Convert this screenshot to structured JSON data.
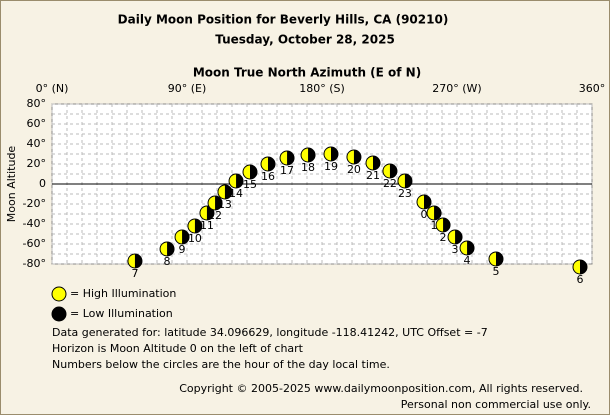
{
  "chart_data": {
    "type": "scatter",
    "title": "Daily Moon Position for Beverly Hills, CA (90210)",
    "subtitle": "Tuesday, October 28, 2025",
    "x_label": "Moon True North Azimuth (E of N)",
    "y_label": "Moon Altitude",
    "xlim": [
      0,
      360
    ],
    "xticks": [
      {
        "value": 0,
        "label": "0° (N)"
      },
      {
        "value": 90,
        "label": "90° (E)"
      },
      {
        "value": 180,
        "label": "180° (S)"
      },
      {
        "value": 270,
        "label": "270° (W)"
      },
      {
        "value": 360,
        "label": "360°"
      }
    ],
    "minor_xticks": [
      10,
      20,
      30,
      40,
      50,
      60,
      70,
      80,
      100,
      110,
      120,
      130,
      140,
      150,
      160,
      170,
      190,
      200,
      210,
      220,
      230,
      240,
      250,
      260,
      280,
      290,
      300,
      310,
      320,
      330,
      340,
      350
    ],
    "ylim": [
      -80,
      80
    ],
    "yticks": [
      {
        "value": 80,
        "label": "80°"
      },
      {
        "value": 60,
        "label": "60°"
      },
      {
        "value": 40,
        "label": "40°"
      },
      {
        "value": 20,
        "label": "20°"
      },
      {
        "value": 0,
        "label": "0"
      },
      {
        "value": -20,
        "label": "-20°"
      },
      {
        "value": -40,
        "label": "-40°"
      },
      {
        "value": -60,
        "label": "-60°"
      },
      {
        "value": -80,
        "label": "-80°"
      }
    ],
    "minor_yticks": [
      70,
      50,
      30,
      10,
      -10,
      -30,
      -50,
      -70
    ],
    "grid": true,
    "x": [
      55.3,
      76.7,
      86.7,
      95.3,
      103.3,
      108.7,
      115.3,
      122.7,
      132,
      144,
      156.7,
      170.7,
      186,
      201.3,
      214,
      225.3,
      235.3,
      248,
      254.7,
      260.7,
      268.7,
      276.7,
      296,
      352
    ],
    "values": [
      -77,
      -65,
      -53,
      -42,
      -29,
      -19,
      -8,
      3,
      12,
      20,
      26,
      29,
      30,
      27,
      21,
      13,
      3,
      -18,
      -29,
      -41,
      -53,
      -64,
      -75,
      -83
    ],
    "point_labels": [
      "7",
      "8",
      "9",
      "10",
      "11",
      "12",
      "13",
      "14",
      "15",
      "16",
      "17",
      "18",
      "19",
      "20",
      "21",
      "22",
      "23",
      "0",
      "1",
      "2",
      "3",
      "4",
      "5",
      "6"
    ],
    "legend": [
      {
        "name": "= High Illumination",
        "color": "#ffff00"
      },
      {
        "name": "= Low Illumination",
        "color": "#000000"
      }
    ],
    "notes": [
      "Data generated for: latitude 34.096629, longitude -118.41242, UTC Offset = -7",
      "Horizon is Moon Altitude 0 on the left of chart",
      "Numbers below the circles are the hour of the day local time."
    ],
    "copyright": [
      "Copyright © 2005-2025 www.dailymoonposition.com, All rights reserved.",
      "Personal non commercial use only."
    ]
  }
}
